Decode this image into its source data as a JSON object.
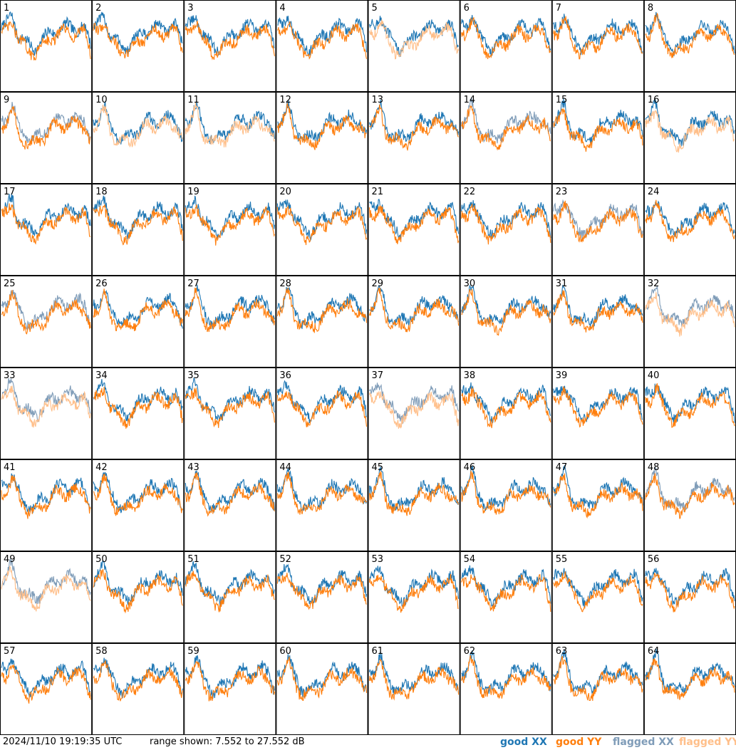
{
  "footer": {
    "timestamp": "2024/11/10 19:19:35 UTC",
    "range_text": "range shown: 7.552 to 27.552 dB"
  },
  "legend": [
    {
      "label": "good XX",
      "color": "#1f77b4"
    },
    {
      "label": "good YY",
      "color": "#ff7f0e"
    },
    {
      "label": "flagged XX",
      "color": "#7f9cb8"
    },
    {
      "label": "flagged YY",
      "color": "#ffbf8a"
    }
  ],
  "chart_data": {
    "type": "line",
    "grid_rows": 8,
    "grid_cols": 8,
    "ylim": [
      7.552,
      27.552
    ],
    "yunit": "dB",
    "colors": {
      "good_xx": "#1f77b4",
      "good_yy": "#ff7f0e",
      "flagged_xx": "#7f9cb8",
      "flagged_yy": "#ffbf8a"
    },
    "panels": [
      {
        "label": "1",
        "xx": "good",
        "yy": "good"
      },
      {
        "label": "2",
        "xx": "good",
        "yy": "good"
      },
      {
        "label": "3",
        "xx": "good",
        "yy": "good"
      },
      {
        "label": "4",
        "xx": "good",
        "yy": "good"
      },
      {
        "label": "5",
        "xx": "good",
        "yy": "flagged"
      },
      {
        "label": "6",
        "xx": "good",
        "yy": "good"
      },
      {
        "label": "7",
        "xx": "good",
        "yy": "good"
      },
      {
        "label": "8",
        "xx": "good",
        "yy": "good"
      },
      {
        "label": "9",
        "xx": "flagged",
        "yy": "good"
      },
      {
        "label": "10",
        "xx": "good",
        "yy": "flagged"
      },
      {
        "label": "11",
        "xx": "good",
        "yy": "flagged"
      },
      {
        "label": "12",
        "xx": "good",
        "yy": "good"
      },
      {
        "label": "13",
        "xx": "good",
        "yy": "good"
      },
      {
        "label": "14",
        "xx": "flagged",
        "yy": "good"
      },
      {
        "label": "15",
        "xx": "good",
        "yy": "good"
      },
      {
        "label": "16",
        "xx": "good",
        "yy": "flagged"
      },
      {
        "label": "17",
        "xx": "good",
        "yy": "good"
      },
      {
        "label": "18",
        "xx": "good",
        "yy": "good"
      },
      {
        "label": "19",
        "xx": "good",
        "yy": "good"
      },
      {
        "label": "20",
        "xx": "good",
        "yy": "good"
      },
      {
        "label": "21",
        "xx": "good",
        "yy": "good"
      },
      {
        "label": "22",
        "xx": "good",
        "yy": "good"
      },
      {
        "label": "23",
        "xx": "flagged",
        "yy": "good"
      },
      {
        "label": "24",
        "xx": "good",
        "yy": "good"
      },
      {
        "label": "25",
        "xx": "flagged",
        "yy": "good"
      },
      {
        "label": "26",
        "xx": "good",
        "yy": "good"
      },
      {
        "label": "27",
        "xx": "good",
        "yy": "good"
      },
      {
        "label": "28",
        "xx": "good",
        "yy": "good"
      },
      {
        "label": "29",
        "xx": "good",
        "yy": "good"
      },
      {
        "label": "30",
        "xx": "good",
        "yy": "good"
      },
      {
        "label": "31",
        "xx": "good",
        "yy": "good"
      },
      {
        "label": "32",
        "xx": "flagged",
        "yy": "flagged"
      },
      {
        "label": "33",
        "xx": "flagged",
        "yy": "flagged"
      },
      {
        "label": "34",
        "xx": "good",
        "yy": "good"
      },
      {
        "label": "35",
        "xx": "good",
        "yy": "good"
      },
      {
        "label": "36",
        "xx": "good",
        "yy": "good"
      },
      {
        "label": "37",
        "xx": "flagged",
        "yy": "flagged"
      },
      {
        "label": "38",
        "xx": "good",
        "yy": "good"
      },
      {
        "label": "39",
        "xx": "good",
        "yy": "good"
      },
      {
        "label": "40",
        "xx": "good",
        "yy": "good"
      },
      {
        "label": "41",
        "xx": "good",
        "yy": "good"
      },
      {
        "label": "42",
        "xx": "good",
        "yy": "good"
      },
      {
        "label": "43",
        "xx": "good",
        "yy": "good"
      },
      {
        "label": "44",
        "xx": "good",
        "yy": "good"
      },
      {
        "label": "45",
        "xx": "good",
        "yy": "good"
      },
      {
        "label": "46",
        "xx": "good",
        "yy": "good"
      },
      {
        "label": "47",
        "xx": "good",
        "yy": "good"
      },
      {
        "label": "48",
        "xx": "flagged",
        "yy": "good"
      },
      {
        "label": "49",
        "xx": "flagged",
        "yy": "flagged"
      },
      {
        "label": "50",
        "xx": "good",
        "yy": "good"
      },
      {
        "label": "51",
        "xx": "good",
        "yy": "good"
      },
      {
        "label": "52",
        "xx": "good",
        "yy": "good"
      },
      {
        "label": "53",
        "xx": "good",
        "yy": "good"
      },
      {
        "label": "54",
        "xx": "good",
        "yy": "good"
      },
      {
        "label": "55",
        "xx": "good",
        "yy": "good"
      },
      {
        "label": "56",
        "xx": "good",
        "yy": "good"
      },
      {
        "label": "57",
        "xx": "good",
        "yy": "good"
      },
      {
        "label": "58",
        "xx": "good",
        "yy": "good"
      },
      {
        "label": "59",
        "xx": "good",
        "yy": "good"
      },
      {
        "label": "60",
        "xx": "good",
        "yy": "good"
      },
      {
        "label": "61",
        "xx": "good",
        "yy": "good"
      },
      {
        "label": "62",
        "xx": "good",
        "yy": "good"
      },
      {
        "label": "63",
        "xx": "good",
        "yy": "good"
      },
      {
        "label": "64",
        "xx": "good",
        "yy": "good"
      }
    ]
  }
}
